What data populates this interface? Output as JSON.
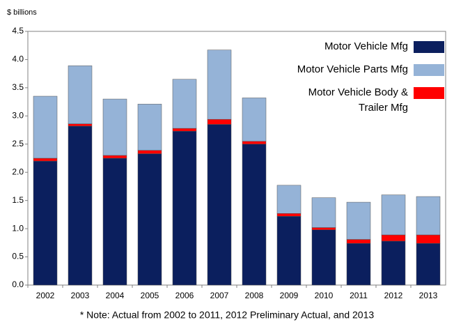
{
  "chart_data": {
    "type": "stacked_bar",
    "y_unit_label": "$ billions",
    "note": "* Note:  Actual from 2002 to 2011, 2012 Preliminary Actual, and 2013",
    "categories": [
      "2002",
      "2003",
      "2004",
      "2005",
      "2006",
      "2007",
      "2008",
      "2009",
      "2010",
      "2011",
      "2012",
      "2013"
    ],
    "series": [
      {
        "name": "Motor Vehicle Mfg",
        "color": "#0b1f5e",
        "values": [
          2.2,
          2.82,
          2.25,
          2.33,
          2.73,
          2.85,
          2.5,
          1.22,
          0.98,
          0.74,
          0.78,
          0.74
        ]
      },
      {
        "name": "Motor Vehicle Parts Mfg",
        "color": "#95b3d7",
        "values": [
          1.1,
          1.03,
          1.0,
          0.82,
          0.87,
          1.23,
          0.77,
          0.5,
          0.53,
          0.66,
          0.71,
          0.68
        ]
      },
      {
        "name": "Motor Vehicle Body & Trailer Mfg",
        "color": "#ff0000",
        "values": [
          0.05,
          0.04,
          0.05,
          0.06,
          0.05,
          0.09,
          0.05,
          0.05,
          0.04,
          0.07,
          0.11,
          0.15
        ]
      }
    ],
    "ylim": [
      0,
      4.5
    ],
    "yticks": [
      {
        "value": 0,
        "label": "0.0"
      },
      0.5,
      {
        "value": 1,
        "label": "1.0"
      },
      1.5,
      {
        "value": 2,
        "label": "2.0"
      },
      2.5,
      {
        "value": 3,
        "label": "3.0"
      },
      3.5,
      {
        "value": 4,
        "label": "4.0"
      },
      4.5
    ]
  }
}
